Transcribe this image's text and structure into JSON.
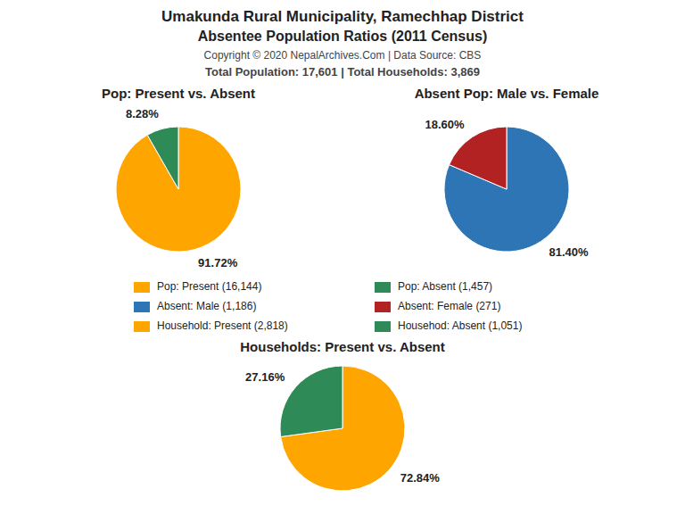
{
  "title": "Umakunda Rural Municipality, Ramechhap District",
  "subtitle": "Absentee Population Ratios (2011 Census)",
  "annotations": [
    "Copyright © 2020 NepalArchives.Com | Data Source: CBS",
    "Total Population: 17,601 | Total Households: 3,869"
  ],
  "chart_data": [
    {
      "type": "pie",
      "title": "Pop: Present vs. Absent",
      "categories": [
        "Pop: Present (16,144)",
        "Pop: Absent (1,457)"
      ],
      "values": [
        91.72,
        8.28
      ],
      "value_labels": [
        "91.72%",
        "8.28%"
      ],
      "colors": [
        "#FFA500",
        "#2E8B57"
      ],
      "data_labels": true,
      "legend": "bottom"
    },
    {
      "type": "pie",
      "title": "Absent Pop: Male vs. Female",
      "categories": [
        "Absent: Male (1,186)",
        "Absent: Female (271)"
      ],
      "values": [
        81.4,
        18.6
      ],
      "value_labels": [
        "81.40%",
        "18.60%"
      ],
      "colors": [
        "#2E75B6",
        "#B22222"
      ],
      "data_labels": true,
      "legend": "bottom"
    },
    {
      "type": "pie",
      "title": "Households: Present vs. Absent",
      "categories": [
        "Household: Present (2,818)",
        "Househod: Absent (1,051)"
      ],
      "values": [
        72.84,
        27.16
      ],
      "value_labels": [
        "72.84%",
        "27.16%"
      ],
      "colors": [
        "#FFA500",
        "#2E8B57"
      ],
      "data_labels": true,
      "legend": "bottom"
    }
  ]
}
